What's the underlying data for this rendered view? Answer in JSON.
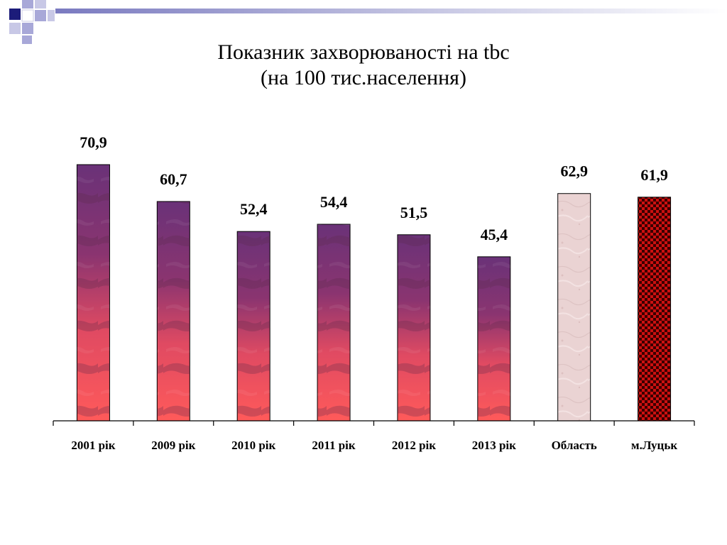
{
  "slide": {
    "title_line1": "Показник захворюваності на tbc",
    "title_line2": "(на 100 тис.населення)"
  },
  "chart_data": {
    "type": "bar",
    "title": "Показник захворюваності на tbc (на 100 тис.населення)",
    "categories": [
      "2001 рік",
      "2009 рік",
      "2010 рік",
      "2011 рік",
      "2012 рік",
      "2013 рік",
      "Область",
      "м.Луцьк"
    ],
    "values": [
      70.9,
      60.7,
      52.4,
      54.4,
      51.5,
      45.4,
      62.9,
      61.9
    ],
    "value_labels": [
      "70,9",
      "60,7",
      "52,4",
      "54,4",
      "51,5",
      "45,4",
      "62,9",
      "61,9"
    ],
    "bar_fills": [
      "sunset",
      "sunset",
      "sunset",
      "sunset",
      "sunset",
      "sunset",
      "pink-marble",
      "red-checker"
    ],
    "ylim": [
      0,
      70.9
    ],
    "grid": false,
    "legend": "none",
    "colors": {
      "sunset_top": "#6a3278",
      "sunset_mid": "#b83a64",
      "sunset_bottom": "#ff5a5a",
      "pink_marble": "#ead3d3",
      "checker_red": "#cc1010",
      "checker_dark": "#3a0000",
      "accent_navy": "#1c1c7a",
      "accent_lavender": "#a8a8d8"
    }
  }
}
